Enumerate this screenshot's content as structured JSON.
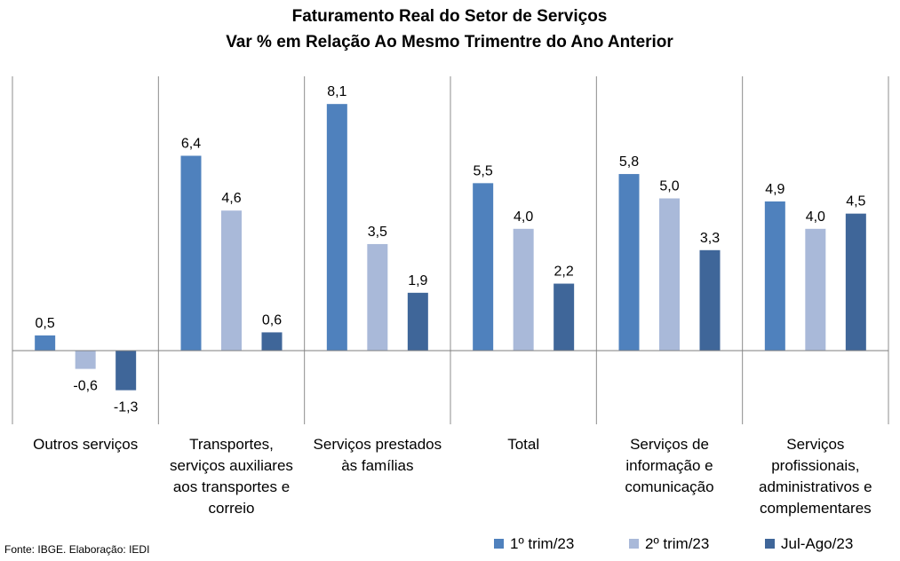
{
  "chart_data": {
    "type": "bar",
    "title": "Faturamento Real do Setor de Serviços",
    "subtitle": "Var % em Relação Ao Mesmo Trimentre do Ano Anterior",
    "categories": [
      [
        "Outros serviços"
      ],
      [
        "Transportes,",
        "serviços auxiliares",
        "aos transportes e",
        "correio"
      ],
      [
        "Serviços prestados",
        "às famílias"
      ],
      [
        "Total"
      ],
      [
        "Serviços de",
        "informação e",
        "comunicação"
      ],
      [
        "Serviços",
        "profissionais,",
        "administrativos e",
        "complementares"
      ]
    ],
    "series": [
      {
        "name": "1º trim/23",
        "color": "#4F81BD",
        "values": [
          0.5,
          6.4,
          8.1,
          5.5,
          5.8,
          4.9
        ],
        "labels": [
          "0,5",
          "6,4",
          "8,1",
          "5,5",
          "5,8",
          "4,9"
        ]
      },
      {
        "name": "2º trim/23",
        "color": "#A9B9D9",
        "values": [
          -0.6,
          4.6,
          3.5,
          4.0,
          5.0,
          4.0
        ],
        "labels": [
          "-0,6",
          "4,6",
          "3,5",
          "4,0",
          "5,0",
          "4,0"
        ]
      },
      {
        "name": "Jul-Ago/23",
        "color": "#3F6699",
        "values": [
          -1.3,
          0.6,
          1.9,
          2.2,
          3.3,
          4.5
        ],
        "labels": [
          "-1,3",
          "0,6",
          "1,9",
          "2,2",
          "3,3",
          "4,5"
        ]
      }
    ],
    "ylim": [
      -2.2,
      9.0
    ],
    "grid": false,
    "legend_position": "bottom-right"
  },
  "source": "Fonte: IBGE. Elaboração: IEDI"
}
